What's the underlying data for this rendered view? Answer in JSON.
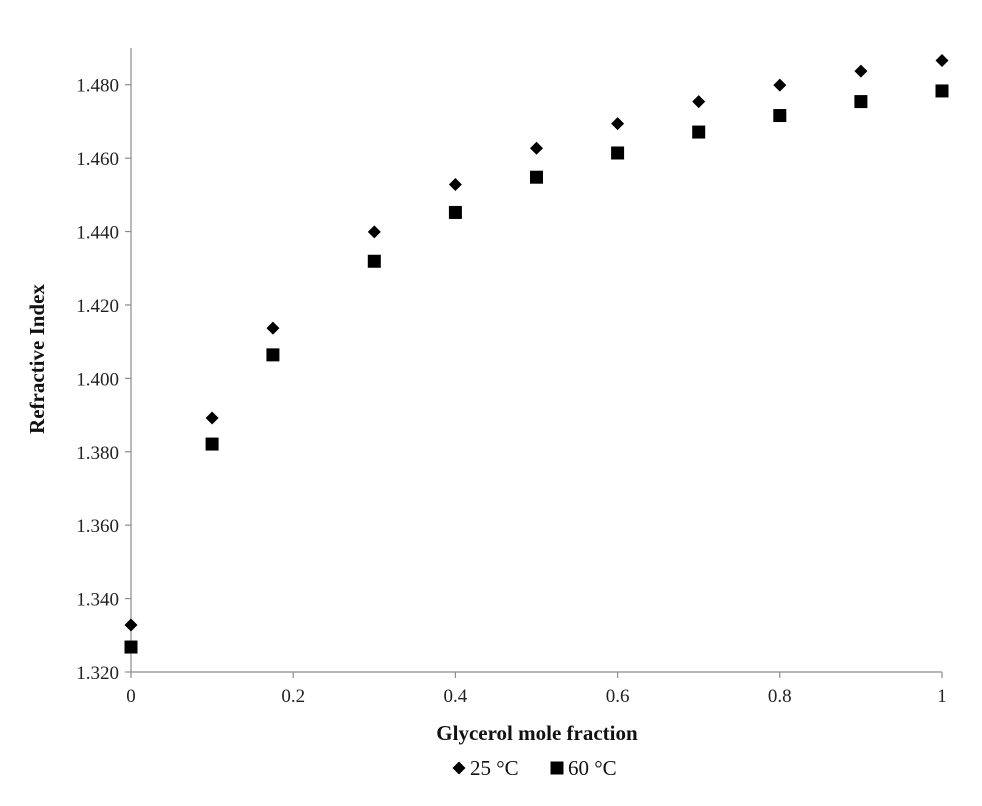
{
  "chart_data": {
    "type": "scatter",
    "title": "",
    "xlabel": "Glycerol mole fraction",
    "ylabel": "Refractive Index",
    "xlim": [
      0,
      1
    ],
    "ylim": [
      1.32,
      1.49
    ],
    "x_ticks": [
      0,
      0.2,
      0.4,
      0.6,
      0.8,
      1
    ],
    "x_tick_labels": [
      "0",
      "0.2",
      "0.4",
      "0.6",
      "0.8",
      "1"
    ],
    "y_ticks": [
      1.32,
      1.34,
      1.36,
      1.38,
      1.4,
      1.42,
      1.44,
      1.46,
      1.48
    ],
    "y_tick_labels": [
      "1.320",
      "1.340",
      "1.360",
      "1.380",
      "1.400",
      "1.420",
      "1.440",
      "1.460",
      "1.480"
    ],
    "grid": false,
    "legend_position": "bottom",
    "series": [
      {
        "name": "25 °C",
        "marker": "diamond",
        "color": "#000000",
        "points": [
          {
            "x": 0,
            "y": 1.3328
          },
          {
            "x": 0.1,
            "y": 1.3892
          },
          {
            "x": 0.175,
            "y": 1.4137
          },
          {
            "x": 0.3,
            "y": 1.4399
          },
          {
            "x": 0.4,
            "y": 1.4528
          },
          {
            "x": 0.5,
            "y": 1.4627
          },
          {
            "x": 0.6,
            "y": 1.4694
          },
          {
            "x": 0.7,
            "y": 1.4754
          },
          {
            "x": 0.8,
            "y": 1.4799
          },
          {
            "x": 0.9,
            "y": 1.4837
          },
          {
            "x": 1.0,
            "y": 1.4866
          }
        ]
      },
      {
        "name": "60 °C",
        "marker": "square",
        "color": "#000000",
        "points": [
          {
            "x": 0,
            "y": 1.3268
          },
          {
            "x": 0.1,
            "y": 1.3821
          },
          {
            "x": 0.175,
            "y": 1.4064
          },
          {
            "x": 0.3,
            "y": 1.4319
          },
          {
            "x": 0.4,
            "y": 1.4452
          },
          {
            "x": 0.5,
            "y": 1.4548
          },
          {
            "x": 0.6,
            "y": 1.4614
          },
          {
            "x": 0.7,
            "y": 1.4671
          },
          {
            "x": 0.8,
            "y": 1.4716
          },
          {
            "x": 0.9,
            "y": 1.4754
          },
          {
            "x": 1.0,
            "y": 1.4783
          }
        ]
      }
    ]
  }
}
